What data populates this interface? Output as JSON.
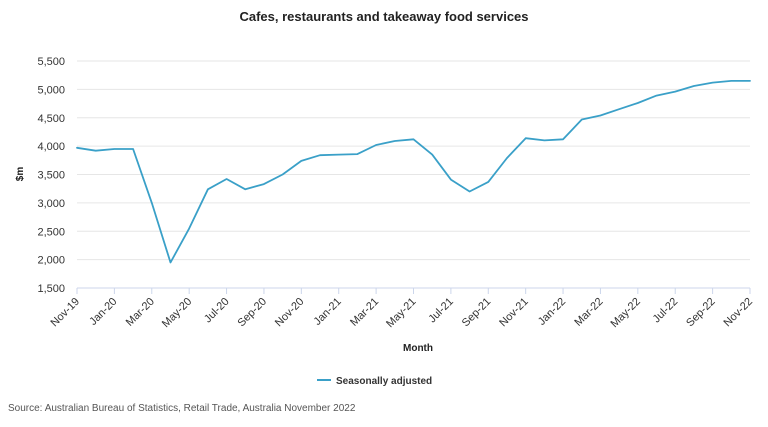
{
  "chart_data": {
    "type": "line",
    "title": "Cafes, restaurants and takeaway food services",
    "xlabel": "Month",
    "ylabel": "$m",
    "ylim": [
      1500,
      5500
    ],
    "yticks": [
      "1,500",
      "2,000",
      "2,500",
      "3,000",
      "3,500",
      "4,000",
      "4,500",
      "5,000",
      "5,500"
    ],
    "ytick_values": [
      1500,
      2000,
      2500,
      3000,
      3500,
      4000,
      4500,
      5000,
      5500
    ],
    "grid": true,
    "legend_position": "bottom",
    "color": "#3aa0c8",
    "x": [
      "Nov-19",
      "Dec-19",
      "Jan-20",
      "Feb-20",
      "Mar-20",
      "Apr-20",
      "May-20",
      "Jun-20",
      "Jul-20",
      "Aug-20",
      "Sep-20",
      "Oct-20",
      "Nov-20",
      "Dec-20",
      "Jan-21",
      "Feb-21",
      "Mar-21",
      "Apr-21",
      "May-21",
      "Jun-21",
      "Jul-21",
      "Aug-21",
      "Sep-21",
      "Oct-21",
      "Nov-21",
      "Dec-21",
      "Jan-22",
      "Feb-22",
      "Mar-22",
      "Apr-22",
      "May-22",
      "Jun-22",
      "Jul-22",
      "Aug-22",
      "Sep-22",
      "Oct-22",
      "Nov-22"
    ],
    "xtick_labels": [
      "Nov-19",
      "Jan-20",
      "Mar-20",
      "May-20",
      "Jul-20",
      "Sep-20",
      "Nov-20",
      "Jan-21",
      "Mar-21",
      "May-21",
      "Jul-21",
      "Sep-21",
      "Nov-21",
      "Jan-22",
      "Mar-22",
      "May-22",
      "Jul-22",
      "Sep-22",
      "Nov-22"
    ],
    "series": [
      {
        "name": "Seasonally adjusted",
        "values": [
          3970,
          3920,
          3950,
          3950,
          3000,
          1950,
          2550,
          3240,
          3420,
          3240,
          3330,
          3500,
          3740,
          3840,
          3850,
          3860,
          4020,
          4090,
          4120,
          3850,
          3410,
          3200,
          3370,
          3790,
          4140,
          4100,
          4120,
          4470,
          4540,
          4650,
          4760,
          4890,
          4960,
          5060,
          5120,
          5150,
          5150
        ]
      }
    ],
    "source": "Source: Australian Bureau of Statistics, Retail Trade, Australia November 2022"
  }
}
